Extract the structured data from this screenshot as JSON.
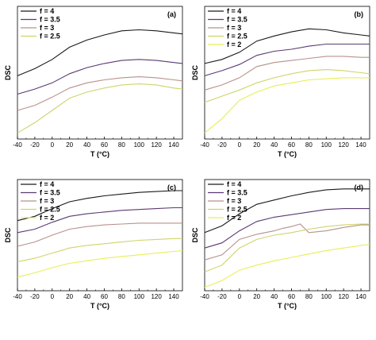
{
  "chart_data": [
    {
      "type": "line",
      "panel_label": "(a)",
      "xlabel": "T (°C)",
      "ylabel": "DSC",
      "xlim": [
        -40,
        150
      ],
      "xticks": [
        "-40",
        "-20",
        "0",
        "20",
        "40",
        "60",
        "80",
        "100",
        "120",
        "140"
      ],
      "legend_position": "top-left",
      "series": [
        {
          "name": "f = 4",
          "color": "#1a1a1a",
          "x": [
            -40,
            -20,
            0,
            20,
            40,
            60,
            80,
            100,
            120,
            140,
            150
          ],
          "y": [
            6.2,
            6.9,
            7.8,
            9.0,
            9.7,
            10.2,
            10.6,
            10.7,
            10.6,
            10.4,
            10.3
          ]
        },
        {
          "name": "f = 3.5",
          "color": "#5b3a73",
          "x": [
            -40,
            -20,
            0,
            20,
            40,
            60,
            80,
            100,
            120,
            140,
            150
          ],
          "y": [
            4.4,
            4.9,
            5.5,
            6.4,
            7.0,
            7.4,
            7.7,
            7.8,
            7.7,
            7.5,
            7.4
          ]
        },
        {
          "name": "f = 3",
          "color": "#b8908c",
          "x": [
            -40,
            -20,
            0,
            20,
            40,
            60,
            80,
            100,
            120,
            140,
            150
          ],
          "y": [
            2.8,
            3.3,
            4.1,
            5.0,
            5.5,
            5.8,
            6.0,
            6.1,
            6.0,
            5.8,
            5.7
          ]
        },
        {
          "name": "f = 2.5",
          "color": "#cfd46a",
          "x": [
            -40,
            -20,
            0,
            20,
            40,
            60,
            80,
            100,
            120,
            140,
            150
          ],
          "y": [
            0.6,
            1.6,
            2.8,
            4.0,
            4.6,
            5.0,
            5.3,
            5.4,
            5.3,
            5.0,
            4.9
          ]
        }
      ]
    },
    {
      "type": "line",
      "panel_label": "(b)",
      "xlabel": "T (°C)",
      "ylabel": "DSC",
      "xlim": [
        -40,
        150
      ],
      "xticks": [
        "-40",
        "-20",
        "0",
        "20",
        "40",
        "60",
        "80",
        "100",
        "120",
        "140"
      ],
      "legend_position": "top-left",
      "series": [
        {
          "name": "f = 4",
          "color": "#1a1a1a",
          "x": [
            -40,
            -20,
            0,
            20,
            40,
            60,
            80,
            100,
            120,
            140,
            150
          ],
          "y": [
            7.4,
            7.8,
            8.5,
            9.6,
            10.1,
            10.5,
            10.8,
            10.7,
            10.4,
            10.2,
            10.1
          ]
        },
        {
          "name": "f = 3.5",
          "color": "#5b3a73",
          "x": [
            -40,
            -20,
            0,
            20,
            40,
            60,
            80,
            100,
            120,
            140,
            150
          ],
          "y": [
            6.2,
            6.7,
            7.3,
            8.2,
            8.6,
            8.8,
            9.1,
            9.3,
            9.3,
            9.3,
            9.3
          ]
        },
        {
          "name": "f = 3",
          "color": "#b8908c",
          "x": [
            -40,
            -20,
            0,
            20,
            40,
            60,
            80,
            100,
            120,
            140,
            150
          ],
          "y": [
            4.8,
            5.3,
            6.0,
            7.1,
            7.5,
            7.7,
            7.9,
            8.1,
            8.1,
            8.0,
            8.0
          ]
        },
        {
          "name": "f = 2.5",
          "color": "#cfd46a",
          "x": [
            -40,
            -20,
            0,
            20,
            40,
            60,
            80,
            100,
            120,
            140,
            150
          ],
          "y": [
            3.6,
            4.2,
            4.8,
            5.5,
            6.0,
            6.4,
            6.7,
            6.8,
            6.7,
            6.5,
            6.4
          ]
        },
        {
          "name": "f = 2",
          "color": "#e8ef55",
          "x": [
            -40,
            -20,
            0,
            20,
            40,
            60,
            80,
            100,
            120,
            140,
            150
          ],
          "y": [
            0.6,
            2.0,
            3.8,
            4.6,
            5.2,
            5.5,
            5.8,
            5.9,
            6.0,
            6.0,
            6.0
          ]
        }
      ]
    },
    {
      "type": "line",
      "panel_label": "(c)",
      "xlabel": "T (°C)",
      "ylabel": "DSC",
      "xlim": [
        -40,
        150
      ],
      "xticks": [
        "-40",
        "-20",
        "0",
        "20",
        "40",
        "60",
        "80",
        "100",
        "120",
        "140"
      ],
      "legend_position": "top-left",
      "series": [
        {
          "name": "f = 4",
          "color": "#1a1a1a",
          "x": [
            -40,
            -20,
            0,
            20,
            40,
            60,
            80,
            100,
            120,
            140,
            150
          ],
          "y": [
            8.2,
            8.7,
            9.6,
            10.4,
            10.8,
            11.1,
            11.3,
            11.5,
            11.6,
            11.7,
            11.7
          ]
        },
        {
          "name": "f = 3.5",
          "color": "#5b3a73",
          "x": [
            -40,
            -20,
            0,
            20,
            40,
            60,
            80,
            100,
            120,
            140,
            150
          ],
          "y": [
            6.8,
            7.2,
            8.0,
            8.7,
            9.0,
            9.2,
            9.4,
            9.5,
            9.6,
            9.7,
            9.7
          ]
        },
        {
          "name": "f = 3",
          "color": "#b8908c",
          "x": [
            -40,
            -20,
            0,
            20,
            40,
            60,
            80,
            100,
            120,
            140,
            150
          ],
          "y": [
            5.2,
            5.7,
            6.5,
            7.2,
            7.5,
            7.7,
            7.8,
            7.9,
            7.9,
            7.9,
            7.9
          ]
        },
        {
          "name": "f = 2.5",
          "color": "#cfd46a",
          "x": [
            -40,
            -20,
            0,
            20,
            40,
            60,
            80,
            100,
            120,
            140,
            150
          ],
          "y": [
            3.4,
            3.8,
            4.4,
            5.0,
            5.3,
            5.5,
            5.7,
            5.9,
            6.0,
            6.1,
            6.1
          ]
        },
        {
          "name": "f = 2",
          "color": "#e8ef55",
          "x": [
            -40,
            -20,
            0,
            20,
            40,
            60,
            80,
            100,
            120,
            140,
            150
          ],
          "y": [
            1.6,
            2.1,
            2.7,
            3.2,
            3.5,
            3.8,
            4.0,
            4.2,
            4.4,
            4.6,
            4.7
          ]
        }
      ]
    },
    {
      "type": "line",
      "panel_label": "(d)",
      "xlabel": "T (°C)",
      "ylabel": "DSC",
      "xlim": [
        -40,
        150
      ],
      "xticks": [
        "-40",
        "-20",
        "0",
        "20",
        "40",
        "60",
        "80",
        "100",
        "120",
        "140"
      ],
      "legend_position": "top-left",
      "series": [
        {
          "name": "f = 4",
          "color": "#1a1a1a",
          "x": [
            -40,
            -20,
            0,
            20,
            40,
            60,
            80,
            100,
            120,
            140,
            150
          ],
          "y": [
            6.8,
            7.6,
            9.0,
            10.1,
            10.6,
            11.1,
            11.5,
            11.8,
            11.9,
            11.9,
            11.9
          ]
        },
        {
          "name": "f = 3.5",
          "color": "#5b3a73",
          "x": [
            -40,
            -20,
            0,
            20,
            40,
            60,
            80,
            100,
            120,
            140,
            150
          ],
          "y": [
            5.0,
            5.6,
            7.0,
            8.1,
            8.6,
            8.9,
            9.2,
            9.5,
            9.6,
            9.6,
            9.6
          ]
        },
        {
          "name": "f = 3",
          "color": "#b8908c",
          "x": [
            -40,
            -20,
            0,
            20,
            40,
            50,
            60,
            70,
            76,
            80,
            100,
            120,
            140,
            150
          ],
          "y": [
            3.6,
            4.2,
            6.0,
            6.6,
            7.0,
            7.3,
            7.5,
            7.8,
            7.2,
            6.8,
            7.0,
            7.4,
            7.7,
            7.7
          ]
        },
        {
          "name": "f = 2.5",
          "color": "#cfd46a",
          "x": [
            -40,
            -20,
            0,
            20,
            40,
            60,
            80,
            100,
            120,
            140,
            150
          ],
          "y": [
            2.2,
            3.0,
            5.0,
            6.0,
            6.5,
            6.8,
            7.2,
            7.5,
            7.7,
            7.8,
            7.8
          ]
        },
        {
          "name": "f = 2",
          "color": "#e8ef55",
          "x": [
            -40,
            -20,
            0,
            20,
            40,
            60,
            80,
            100,
            120,
            140,
            150
          ],
          "y": [
            0.4,
            1.2,
            2.4,
            3.0,
            3.5,
            3.9,
            4.3,
            4.7,
            5.0,
            5.3,
            5.4
          ]
        }
      ]
    }
  ]
}
